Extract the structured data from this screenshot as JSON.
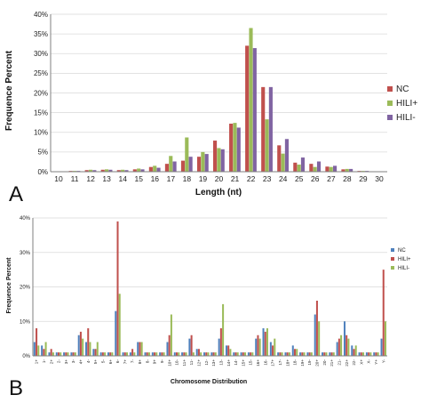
{
  "panels": [
    {
      "letter": "A"
    },
    {
      "letter": "B"
    }
  ],
  "chart_data": [
    {
      "type": "bar",
      "panel": "A",
      "title": "",
      "xlabel": "Length (nt)",
      "ylabel": "Frequence Percent",
      "ylim": [
        0,
        40
      ],
      "yticks": [
        "0%",
        "5%",
        "10%",
        "15%",
        "20%",
        "25%",
        "30%",
        "35%",
        "40%"
      ],
      "grid": true,
      "legend": "right",
      "categories": [
        "10",
        "11",
        "12",
        "13",
        "14",
        "15",
        "16",
        "17",
        "18",
        "19",
        "20",
        "21",
        "22",
        "23",
        "24",
        "25",
        "26",
        "27",
        "28",
        "29",
        "30"
      ],
      "series": [
        {
          "name": "NC",
          "color": "#c0504d",
          "values": [
            0.1,
            0.2,
            0.4,
            0.5,
            0.4,
            0.6,
            1.2,
            2.0,
            2.8,
            3.8,
            7.9,
            12.2,
            32.0,
            21.5,
            6.7,
            2.3,
            2.0,
            1.3,
            0.6,
            0.2,
            0.1
          ]
        },
        {
          "name": "HILI+",
          "color": "#9bbb59",
          "values": [
            0.1,
            0.2,
            0.5,
            0.6,
            0.5,
            0.8,
            1.5,
            4.0,
            8.7,
            5.0,
            6.0,
            12.4,
            36.5,
            13.3,
            4.6,
            1.8,
            1.2,
            1.2,
            0.7,
            0.2,
            0.1
          ]
        },
        {
          "name": "HILI-",
          "color": "#8064a2",
          "values": [
            0.1,
            0.2,
            0.4,
            0.5,
            0.4,
            0.6,
            1.0,
            2.6,
            3.8,
            4.5,
            5.7,
            11.2,
            31.4,
            21.5,
            8.3,
            3.6,
            2.6,
            1.5,
            0.7,
            0.2,
            0.1
          ]
        }
      ]
    },
    {
      "type": "bar",
      "panel": "B",
      "title": "",
      "xlabel": "Chromosome Distribution",
      "ylabel": "Frequence Percent",
      "ylim": [
        0,
        40
      ],
      "yticks": [
        "0%",
        "10%",
        "20%",
        "30%",
        "40%"
      ],
      "grid": true,
      "legend": "right",
      "categories": [
        "1+",
        "1-",
        "2+",
        "2-",
        "3+",
        "3-",
        "4+",
        "4-",
        "5+",
        "5-",
        "6+",
        "6-",
        "7+",
        "7-",
        "8+",
        "8-",
        "9+",
        "9-",
        "10+",
        "10-",
        "11+",
        "11-",
        "12+",
        "12-",
        "13+",
        "13-",
        "14+",
        "14-",
        "15+",
        "15-",
        "16+",
        "16-",
        "17+",
        "17-",
        "18+",
        "18-",
        "19+",
        "19-",
        "20+",
        "20-",
        "21+",
        "21-",
        "22+",
        "22-",
        "X+",
        "X-",
        "Y+",
        "Y-"
      ],
      "series": [
        {
          "name": "NC",
          "color": "#4f81bd",
          "values": [
            4,
            3,
            1,
            1,
            1,
            1,
            6,
            4,
            2,
            1,
            1,
            13,
            1,
            1,
            4,
            1,
            1,
            1,
            4,
            1,
            1,
            5,
            2,
            1,
            1,
            5,
            3,
            1,
            1,
            1,
            5,
            8,
            4,
            1,
            1,
            3,
            1,
            1,
            12,
            1,
            1,
            4,
            10,
            3,
            1,
            1,
            1,
            5
          ]
        },
        {
          "name": "HILI+",
          "color": "#c0504d",
          "values": [
            8,
            2,
            2,
            1,
            1,
            1,
            7,
            8,
            2,
            1,
            1,
            39,
            1,
            2,
            4,
            1,
            1,
            1,
            6,
            1,
            1,
            6,
            2,
            1,
            1,
            8,
            3,
            1,
            1,
            1,
            6,
            7,
            3,
            1,
            1,
            2,
            1,
            1,
            16,
            1,
            1,
            5,
            6,
            2,
            1,
            1,
            1,
            25
          ]
        },
        {
          "name": "HILI-",
          "color": "#9bbb59",
          "values": [
            3,
            4,
            1,
            1,
            1,
            1,
            5,
            4,
            4,
            1,
            1,
            18,
            1,
            1,
            4,
            1,
            1,
            1,
            12,
            1,
            1,
            1,
            1,
            1,
            1,
            15,
            2,
            1,
            1,
            1,
            5,
            8,
            5,
            1,
            1,
            2,
            1,
            1,
            10,
            1,
            1,
            6,
            5,
            3,
            1,
            1,
            1,
            10
          ]
        }
      ]
    }
  ]
}
